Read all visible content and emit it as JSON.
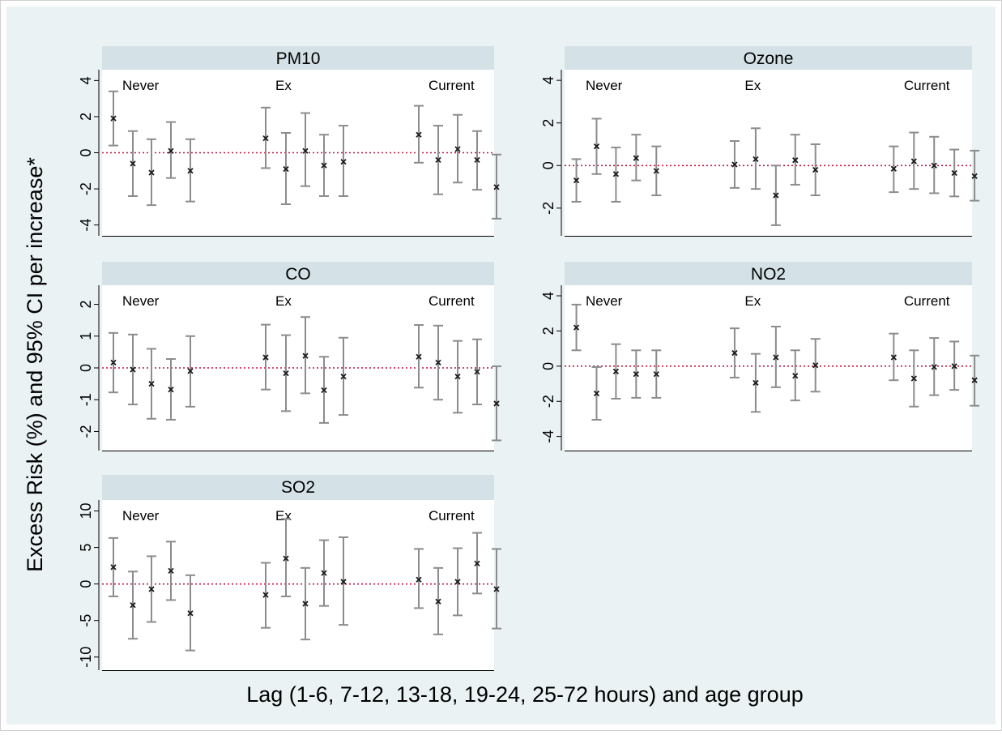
{
  "chart_data": {
    "type": "scatter",
    "subtype": "point-estimate-with-95pct-error-bars",
    "ylabel": "Excess Risk (%) and 95% CI per increase*",
    "xlabel": "Lag (1-6, 7-12, 13-18, 19-24, 25-72 hours) and age group",
    "reference_line": {
      "y": 0,
      "style": "dotted",
      "color": "#c0143c"
    },
    "colors": {
      "background": "#eaf2f3",
      "plot_bg": "#ffffff",
      "panel_header": "#d4e1e7",
      "whisker": "#8c8c8c",
      "marker": "#1a1a1a"
    },
    "grid": false,
    "legend": "none",
    "panels": [
      {
        "title": "PM10",
        "ylim": [
          -4.6,
          4.6
        ],
        "yticks": [
          -4,
          -2,
          0,
          2,
          4
        ],
        "yticklabels": [
          "-4",
          "-2",
          "0",
          "2",
          "4"
        ],
        "groups": [
          {
            "label": "Never",
            "points": [
              {
                "y": 1.9,
                "lo": 0.4,
                "hi": 3.4
              },
              {
                "y": -0.6,
                "lo": -2.4,
                "hi": 1.2
              },
              {
                "y": -1.1,
                "lo": -2.9,
                "hi": 0.75
              },
              {
                "y": 0.1,
                "lo": -1.4,
                "hi": 1.7
              },
              {
                "y": -1.0,
                "lo": -2.7,
                "hi": 0.75
              }
            ]
          },
          {
            "label": "Ex",
            "points": [
              {
                "y": 0.8,
                "lo": -0.85,
                "hi": 2.5
              },
              {
                "y": -0.9,
                "lo": -2.85,
                "hi": 1.1
              },
              {
                "y": 0.1,
                "lo": -1.85,
                "hi": 2.2
              },
              {
                "y": -0.7,
                "lo": -2.4,
                "hi": 1.0
              },
              {
                "y": -0.5,
                "lo": -2.4,
                "hi": 1.5
              }
            ]
          },
          {
            "label": "Current",
            "points": [
              {
                "y": 1.0,
                "lo": -0.55,
                "hi": 2.6
              },
              {
                "y": -0.4,
                "lo": -2.3,
                "hi": 1.5
              },
              {
                "y": 0.2,
                "lo": -1.65,
                "hi": 2.1
              },
              {
                "y": -0.4,
                "lo": -2.05,
                "hi": 1.2
              },
              {
                "y": -1.9,
                "lo": -3.65,
                "hi": -0.1
              }
            ]
          }
        ]
      },
      {
        "title": "Ozone",
        "ylim": [
          -3.3,
          4.5
        ],
        "yticks": [
          -2,
          0,
          2,
          4
        ],
        "yticklabels": [
          "-2",
          "0",
          "2",
          "4"
        ],
        "groups": [
          {
            "label": "Never",
            "points": [
              {
                "y": -0.7,
                "lo": -1.7,
                "hi": 0.3
              },
              {
                "y": 0.9,
                "lo": -0.4,
                "hi": 2.2
              },
              {
                "y": -0.4,
                "lo": -1.7,
                "hi": 0.85
              },
              {
                "y": 0.35,
                "lo": -0.7,
                "hi": 1.45
              },
              {
                "y": -0.25,
                "lo": -1.4,
                "hi": 0.9
              }
            ]
          },
          {
            "label": "Ex",
            "points": [
              {
                "y": 0.05,
                "lo": -1.05,
                "hi": 1.15
              },
              {
                "y": 0.3,
                "lo": -1.1,
                "hi": 1.75
              },
              {
                "y": -1.4,
                "lo": -2.8,
                "hi": 0.0
              },
              {
                "y": 0.25,
                "lo": -0.9,
                "hi": 1.45
              },
              {
                "y": -0.2,
                "lo": -1.4,
                "hi": 1.0
              }
            ]
          },
          {
            "label": "Current",
            "points": [
              {
                "y": -0.15,
                "lo": -1.25,
                "hi": 0.9
              },
              {
                "y": 0.2,
                "lo": -1.1,
                "hi": 1.55
              },
              {
                "y": 0.0,
                "lo": -1.3,
                "hi": 1.35
              },
              {
                "y": -0.35,
                "lo": -1.45,
                "hi": 0.75
              },
              {
                "y": -0.5,
                "lo": -1.65,
                "hi": 0.7
              }
            ]
          }
        ]
      },
      {
        "title": "CO",
        "ylim": [
          -2.6,
          2.6
        ],
        "yticks": [
          -2,
          -1,
          0,
          1,
          2
        ],
        "yticklabels": [
          "-2",
          "-1",
          "0",
          "1",
          "2"
        ],
        "groups": [
          {
            "label": "Never",
            "points": [
              {
                "y": 0.17,
                "lo": -0.77,
                "hi": 1.1
              },
              {
                "y": -0.05,
                "lo": -1.15,
                "hi": 1.05
              },
              {
                "y": -0.5,
                "lo": -1.6,
                "hi": 0.6
              },
              {
                "y": -0.68,
                "lo": -1.63,
                "hi": 0.28
              },
              {
                "y": -0.1,
                "lo": -1.22,
                "hi": 1.0
              }
            ]
          },
          {
            "label": "Ex",
            "points": [
              {
                "y": 0.33,
                "lo": -0.68,
                "hi": 1.36
              },
              {
                "y": -0.17,
                "lo": -1.36,
                "hi": 1.03
              },
              {
                "y": 0.38,
                "lo": -0.8,
                "hi": 1.6
              },
              {
                "y": -0.7,
                "lo": -1.73,
                "hi": 0.35
              },
              {
                "y": -0.27,
                "lo": -1.48,
                "hi": 0.95
              }
            ]
          },
          {
            "label": "Current",
            "points": [
              {
                "y": 0.35,
                "lo": -0.62,
                "hi": 1.35
              },
              {
                "y": 0.17,
                "lo": -1.0,
                "hi": 1.33
              },
              {
                "y": -0.27,
                "lo": -1.41,
                "hi": 0.85
              },
              {
                "y": -0.12,
                "lo": -1.15,
                "hi": 0.9
              },
              {
                "y": -1.12,
                "lo": -2.28,
                "hi": 0.05
              }
            ]
          }
        ]
      },
      {
        "title": "NO2",
        "ylim": [
          -4.8,
          4.6
        ],
        "yticks": [
          -4,
          -2,
          0,
          2,
          4
        ],
        "yticklabels": [
          "-4",
          "-2",
          "0",
          "2",
          "4"
        ],
        "groups": [
          {
            "label": "Never",
            "points": [
              {
                "y": 2.2,
                "lo": 0.9,
                "hi": 3.5
              },
              {
                "y": -1.55,
                "lo": -3.05,
                "hi": -0.05
              },
              {
                "y": -0.3,
                "lo": -1.85,
                "hi": 1.25
              },
              {
                "y": -0.45,
                "lo": -1.8,
                "hi": 0.9
              },
              {
                "y": -0.45,
                "lo": -1.8,
                "hi": 0.9
              }
            ]
          },
          {
            "label": "Ex",
            "points": [
              {
                "y": 0.75,
                "lo": -0.65,
                "hi": 2.15
              },
              {
                "y": -0.95,
                "lo": -2.6,
                "hi": 0.7
              },
              {
                "y": 0.5,
                "lo": -1.2,
                "hi": 2.25
              },
              {
                "y": -0.55,
                "lo": -1.95,
                "hi": 0.9
              },
              {
                "y": 0.05,
                "lo": -1.45,
                "hi": 1.55
              }
            ]
          },
          {
            "label": "Current",
            "points": [
              {
                "y": 0.5,
                "lo": -0.8,
                "hi": 1.85
              },
              {
                "y": -0.7,
                "lo": -2.3,
                "hi": 0.9
              },
              {
                "y": -0.05,
                "lo": -1.65,
                "hi": 1.6
              },
              {
                "y": 0.0,
                "lo": -1.35,
                "hi": 1.4
              },
              {
                "y": -0.8,
                "lo": -2.25,
                "hi": 0.6
              }
            ]
          }
        ]
      },
      {
        "title": "SO2",
        "ylim": [
          -11.8,
          11.5
        ],
        "yticks": [
          -10,
          -5,
          0,
          5,
          10
        ],
        "yticklabels": [
          "-10",
          "-5",
          "0",
          "5",
          "10"
        ],
        "groups": [
          {
            "label": "Never",
            "points": [
              {
                "y": 2.3,
                "lo": -1.7,
                "hi": 6.3
              },
              {
                "y": -2.9,
                "lo": -7.5,
                "hi": 1.7
              },
              {
                "y": -0.7,
                "lo": -5.2,
                "hi": 3.8
              },
              {
                "y": 1.8,
                "lo": -2.2,
                "hi": 5.8
              },
              {
                "y": -4.0,
                "lo": -9.1,
                "hi": 1.2
              }
            ]
          },
          {
            "label": "Ex",
            "points": [
              {
                "y": -1.5,
                "lo": -6.0,
                "hi": 2.9
              },
              {
                "y": 3.5,
                "lo": -1.7,
                "hi": 8.9
              },
              {
                "y": -2.7,
                "lo": -7.6,
                "hi": 2.2
              },
              {
                "y": 1.5,
                "lo": -3.0,
                "hi": 6.0
              },
              {
                "y": 0.3,
                "lo": -5.6,
                "hi": 6.4
              }
            ]
          },
          {
            "label": "Current",
            "points": [
              {
                "y": 0.6,
                "lo": -3.3,
                "hi": 4.8
              },
              {
                "y": -2.4,
                "lo": -6.9,
                "hi": 2.2
              },
              {
                "y": 0.3,
                "lo": -4.3,
                "hi": 4.9
              },
              {
                "y": 2.8,
                "lo": -1.3,
                "hi": 7.0
              },
              {
                "y": -0.7,
                "lo": -6.1,
                "hi": 4.8
              }
            ]
          }
        ]
      }
    ]
  }
}
